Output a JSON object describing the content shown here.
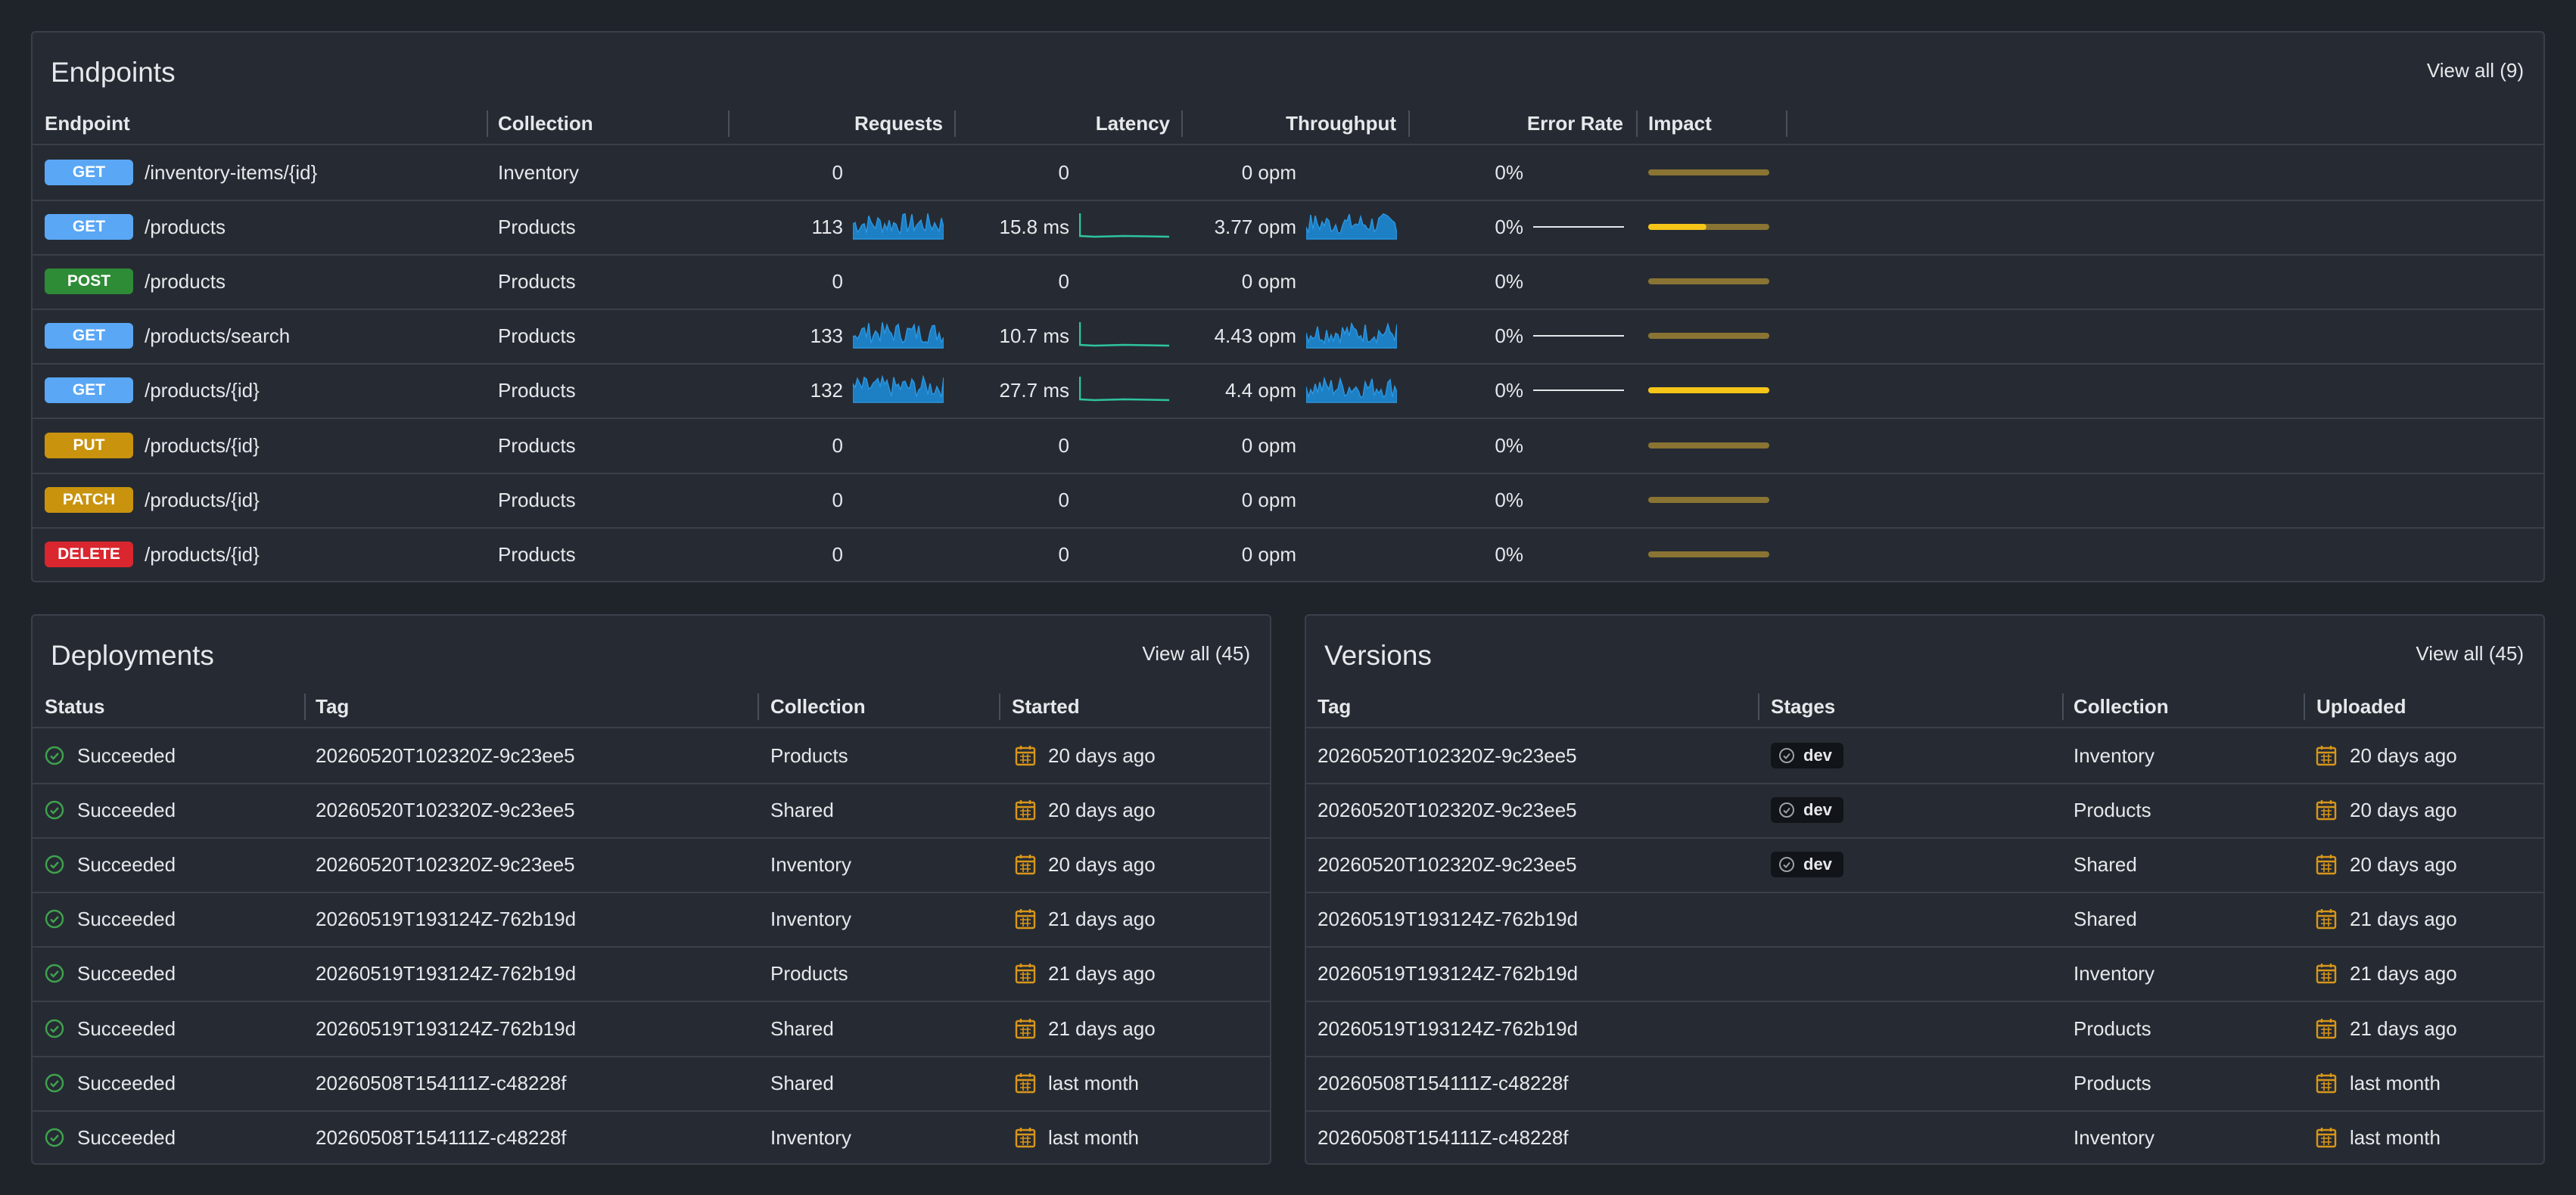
{
  "endpoints": {
    "title": "Endpoints",
    "view_all": "View all (9)",
    "columns": [
      "Endpoint",
      "Collection",
      "Requests",
      "Latency",
      "Throughput",
      "Error Rate",
      "Impact"
    ],
    "rows": [
      {
        "method": "GET",
        "path": "/inventory-items/{id}",
        "collection": "Inventory",
        "requests": "0",
        "latency": "0",
        "throughput": "0 opm",
        "error_rate": "0%",
        "trend": false,
        "impact": 0
      },
      {
        "method": "GET",
        "path": "/products",
        "collection": "Products",
        "requests": "113",
        "latency": "15.8 ms",
        "throughput": "3.77 opm",
        "error_rate": "0%",
        "trend": true,
        "impact": 0.48
      },
      {
        "method": "POST",
        "path": "/products",
        "collection": "Products",
        "requests": "0",
        "latency": "0",
        "throughput": "0 opm",
        "error_rate": "0%",
        "trend": false,
        "impact": 0
      },
      {
        "method": "GET",
        "path": "/products/search",
        "collection": "Products",
        "requests": "133",
        "latency": "10.7 ms",
        "throughput": "4.43 opm",
        "error_rate": "0%",
        "trend": true,
        "impact": 0
      },
      {
        "method": "GET",
        "path": "/products/{id}",
        "collection": "Products",
        "requests": "132",
        "latency": "27.7 ms",
        "throughput": "4.4 opm",
        "error_rate": "0%",
        "trend": true,
        "impact": 1
      },
      {
        "method": "PUT",
        "path": "/products/{id}",
        "collection": "Products",
        "requests": "0",
        "latency": "0",
        "throughput": "0 opm",
        "error_rate": "0%",
        "trend": false,
        "impact": 0
      },
      {
        "method": "PATCH",
        "path": "/products/{id}",
        "collection": "Products",
        "requests": "0",
        "latency": "0",
        "throughput": "0 opm",
        "error_rate": "0%",
        "trend": false,
        "impact": 0
      },
      {
        "method": "DELETE",
        "path": "/products/{id}",
        "collection": "Products",
        "requests": "0",
        "latency": "0",
        "throughput": "0 opm",
        "error_rate": "0%",
        "trend": false,
        "impact": 0
      }
    ]
  },
  "deployments": {
    "title": "Deployments",
    "view_all": "View all (45)",
    "columns": [
      "Status",
      "Tag",
      "Collection",
      "Started"
    ],
    "rows": [
      {
        "status": "Succeeded",
        "tag": "20260520T102320Z-9c23ee5",
        "collection": "Products",
        "started": "20 days ago"
      },
      {
        "status": "Succeeded",
        "tag": "20260520T102320Z-9c23ee5",
        "collection": "Shared",
        "started": "20 days ago"
      },
      {
        "status": "Succeeded",
        "tag": "20260520T102320Z-9c23ee5",
        "collection": "Inventory",
        "started": "20 days ago"
      },
      {
        "status": "Succeeded",
        "tag": "20260519T193124Z-762b19d",
        "collection": "Inventory",
        "started": "21 days ago"
      },
      {
        "status": "Succeeded",
        "tag": "20260519T193124Z-762b19d",
        "collection": "Products",
        "started": "21 days ago"
      },
      {
        "status": "Succeeded",
        "tag": "20260519T193124Z-762b19d",
        "collection": "Shared",
        "started": "21 days ago"
      },
      {
        "status": "Succeeded",
        "tag": "20260508T154111Z-c48228f",
        "collection": "Shared",
        "started": "last month"
      },
      {
        "status": "Succeeded",
        "tag": "20260508T154111Z-c48228f",
        "collection": "Inventory",
        "started": "last month"
      }
    ]
  },
  "versions": {
    "title": "Versions",
    "view_all": "View all (45)",
    "columns": [
      "Tag",
      "Stages",
      "Collection",
      "Uploaded"
    ],
    "rows": [
      {
        "tag": "20260520T102320Z-9c23ee5",
        "stages": "dev",
        "collection": "Inventory",
        "uploaded": "20 days ago"
      },
      {
        "tag": "20260520T102320Z-9c23ee5",
        "stages": "dev",
        "collection": "Products",
        "uploaded": "20 days ago"
      },
      {
        "tag": "20260520T102320Z-9c23ee5",
        "stages": "dev",
        "collection": "Shared",
        "uploaded": "20 days ago"
      },
      {
        "tag": "20260519T193124Z-762b19d",
        "stages": null,
        "collection": "Shared",
        "uploaded": "21 days ago"
      },
      {
        "tag": "20260519T193124Z-762b19d",
        "stages": null,
        "collection": "Inventory",
        "uploaded": "21 days ago"
      },
      {
        "tag": "20260519T193124Z-762b19d",
        "stages": null,
        "collection": "Products",
        "uploaded": "21 days ago"
      },
      {
        "tag": "20260508T154111Z-c48228f",
        "stages": null,
        "collection": "Products",
        "uploaded": "last month"
      },
      {
        "tag": "20260508T154111Z-c48228f",
        "stages": null,
        "collection": "Inventory",
        "uploaded": "last month"
      }
    ]
  }
}
